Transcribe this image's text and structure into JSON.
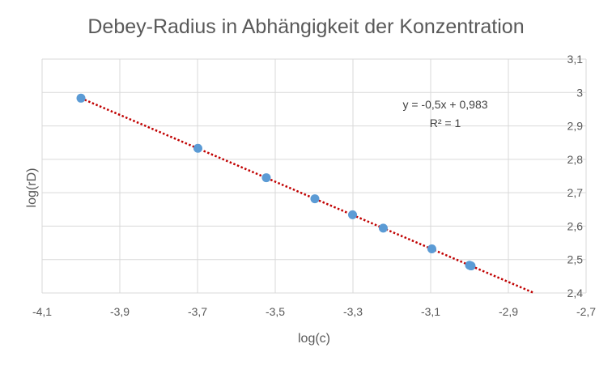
{
  "chart_data": {
    "type": "scatter",
    "title": "Debey-Radius in Abhängigkeit der Konzentration",
    "xlabel": "log(c)",
    "ylabel": "log(rD)",
    "xlim": [
      -4.1,
      -2.7
    ],
    "ylim": [
      2.4,
      3.1
    ],
    "x_ticks": [
      -4.1,
      -3.9,
      -3.7,
      -3.5,
      -3.3,
      -3.1,
      -2.9,
      -2.7
    ],
    "x_tick_labels": [
      "-4,1",
      "-3,9",
      "-3,7",
      "-3,5",
      "-3,3",
      "-3,1",
      "-2,9",
      "-2,7"
    ],
    "y_ticks": [
      2.4,
      2.5,
      2.6,
      2.7,
      2.8,
      2.9,
      3.0,
      3.1
    ],
    "y_tick_labels": [
      "2,4",
      "2,5",
      "2,6",
      "2,7",
      "2,8",
      "2,9",
      "3",
      "3,1"
    ],
    "y_axis_side": "right",
    "grid": true,
    "series": [
      {
        "x": [
          -4.0,
          -3.699,
          -3.523,
          -3.398,
          -3.301,
          -3.222,
          -3.097,
          -3.0,
          -2.996
        ],
        "y": [
          2.983,
          2.833,
          2.745,
          2.682,
          2.634,
          2.594,
          2.532,
          2.483,
          2.481
        ],
        "color": "#5B9BD5"
      }
    ],
    "trendline": {
      "type": "linear",
      "slope": -0.5,
      "intercept": 0.983,
      "color": "#C00000",
      "style": "dotted",
      "equation_label": "y = -0,5x + 0,983",
      "r2_label": "R² = 1"
    }
  }
}
